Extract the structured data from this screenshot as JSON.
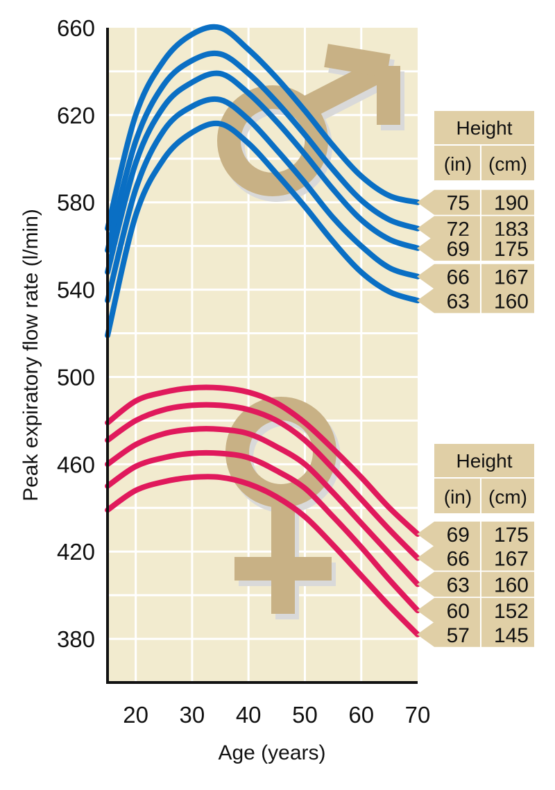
{
  "chart_data": {
    "type": "line",
    "ylabel": "Peak expiratory flow rate  (l/min)",
    "xlabel": "Age (years)",
    "xlim": [
      15,
      70
    ],
    "ylim": [
      360,
      660
    ],
    "x_ticks": [
      20,
      30,
      40,
      50,
      60,
      70
    ],
    "y_ticks": [
      380,
      420,
      460,
      500,
      540,
      580,
      620,
      660
    ],
    "grid": true,
    "colors": {
      "men": "#0a6fc4",
      "women": "#e0195c",
      "background": "#f2ebcf",
      "grid": "#ffffff",
      "symbol": "#c8b185",
      "table_fill": "#e0cfa6"
    },
    "men": {
      "symbol": "male-symbol",
      "table": {
        "header": "Height",
        "col_in": "(in)",
        "col_cm": "(cm)",
        "rows": [
          {
            "in": "75",
            "cm": "190"
          },
          {
            "in": "72",
            "cm": "183"
          },
          {
            "in": "69",
            "cm": "175"
          },
          {
            "in": "66",
            "cm": "167"
          },
          {
            "in": "63",
            "cm": "160"
          }
        ]
      },
      "series": [
        {
          "height_in": 75,
          "x": [
            15,
            20,
            25,
            30,
            35,
            40,
            45,
            50,
            55,
            60,
            65,
            70
          ],
          "y": [
            568,
            620,
            645,
            657,
            660,
            650,
            637,
            622,
            606,
            592,
            583,
            580
          ]
        },
        {
          "height_in": 72,
          "x": [
            15,
            20,
            25,
            30,
            35,
            40,
            45,
            50,
            55,
            60,
            65,
            70
          ],
          "y": [
            558,
            608,
            634,
            645,
            648,
            639,
            626,
            611,
            595,
            581,
            572,
            568
          ]
        },
        {
          "height_in": 69,
          "x": [
            15,
            20,
            25,
            30,
            35,
            40,
            45,
            50,
            55,
            60,
            65,
            70
          ],
          "y": [
            548,
            598,
            624,
            635,
            639,
            630,
            617,
            602,
            586,
            572,
            563,
            559
          ]
        },
        {
          "height_in": 66,
          "x": [
            15,
            20,
            25,
            30,
            35,
            40,
            45,
            50,
            55,
            60,
            65,
            70
          ],
          "y": [
            535,
            586,
            613,
            624,
            627,
            618,
            604,
            589,
            573,
            560,
            550,
            546
          ]
        },
        {
          "height_in": 63,
          "x": [
            15,
            20,
            25,
            30,
            35,
            40,
            45,
            50,
            55,
            60,
            65,
            70
          ],
          "y": [
            519,
            574,
            600,
            612,
            616,
            607,
            593,
            578,
            562,
            548,
            539,
            535
          ]
        }
      ]
    },
    "women": {
      "symbol": "female-symbol",
      "table": {
        "header": "Height",
        "col_in": "(in)",
        "col_cm": "(cm)",
        "rows": [
          {
            "in": "69",
            "cm": "175"
          },
          {
            "in": "66",
            "cm": "167"
          },
          {
            "in": "63",
            "cm": "160"
          },
          {
            "in": "60",
            "cm": "152"
          },
          {
            "in": "57",
            "cm": "145"
          }
        ]
      },
      "series": [
        {
          "height_in": 69,
          "x": [
            15,
            20,
            25,
            30,
            35,
            40,
            45,
            50,
            55,
            60,
            65,
            70
          ],
          "y": [
            479,
            489,
            493,
            495,
            495,
            493,
            488,
            479,
            467,
            454,
            440,
            428
          ]
        },
        {
          "height_in": 66,
          "x": [
            15,
            20,
            25,
            30,
            35,
            40,
            45,
            50,
            55,
            60,
            65,
            70
          ],
          "y": [
            471,
            480,
            485,
            487,
            487,
            485,
            480,
            471,
            458,
            444,
            430,
            417
          ]
        },
        {
          "height_in": 63,
          "x": [
            15,
            20,
            25,
            30,
            35,
            40,
            45,
            50,
            55,
            60,
            65,
            70
          ],
          "y": [
            460,
            469,
            474,
            476,
            476,
            474,
            468,
            460,
            447,
            433,
            419,
            405
          ]
        },
        {
          "height_in": 60,
          "x": [
            15,
            20,
            25,
            30,
            35,
            40,
            45,
            50,
            55,
            60,
            65,
            70
          ],
          "y": [
            450,
            459,
            463,
            465,
            465,
            463,
            457,
            449,
            436,
            422,
            407,
            393
          ]
        },
        {
          "height_in": 57,
          "x": [
            15,
            20,
            25,
            30,
            35,
            40,
            45,
            50,
            55,
            60,
            65,
            70
          ],
          "y": [
            439,
            448,
            452,
            454,
            454,
            451,
            445,
            436,
            423,
            409,
            395,
            382
          ]
        }
      ]
    }
  }
}
